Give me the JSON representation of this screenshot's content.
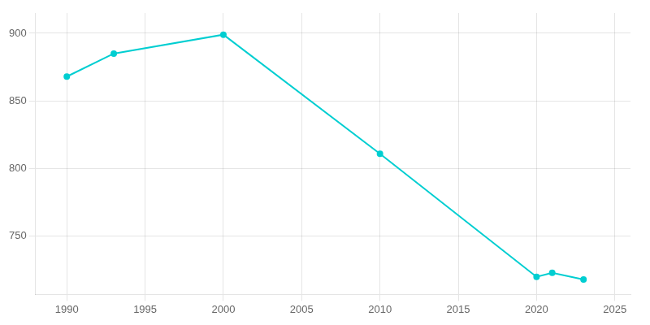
{
  "chart_data": {
    "type": "line",
    "x": [
      1990,
      1993,
      2000,
      2010,
      2020,
      2021,
      2023
    ],
    "values": [
      868,
      885,
      899,
      811,
      720,
      723,
      718
    ],
    "color": "#00CED1",
    "marker": "circle",
    "line_style": "solid",
    "xlim": [
      1988,
      2026
    ],
    "xticks": [
      1990,
      1995,
      2000,
      2005,
      2010,
      2015,
      2020,
      2025
    ],
    "ylim": [
      707,
      915
    ],
    "yticks": [
      750,
      800,
      850,
      900
    ],
    "grid": true
  }
}
